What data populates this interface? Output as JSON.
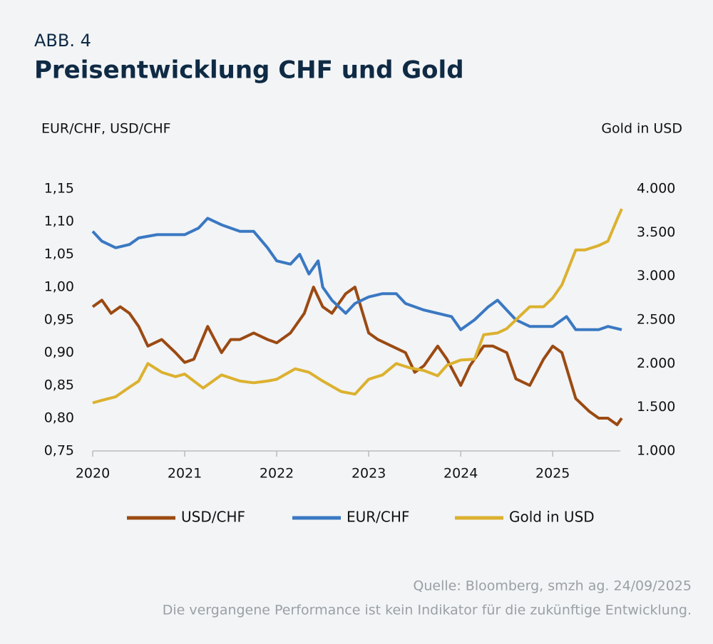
{
  "chart_data": {
    "type": "line",
    "figure_label": "ABB. 4",
    "title": "Preisentwicklung CHF und Gold",
    "y_label": "EUR/CHF, USD/CHF",
    "y2_label": "Gold in USD",
    "source": "Quelle: Bloomberg, smzh ag. 24/09/2025",
    "note": "Die vergangene Performance ist kein Indikator für die zukünftige Entwicklung.",
    "xlim": [
      2020,
      2025.75
    ],
    "xticks": [
      2020,
      2021,
      2022,
      2023,
      2024,
      2025
    ],
    "ylim": [
      0.75,
      1.15
    ],
    "yticks": [
      {
        "value": 0.75,
        "label": "0,75"
      },
      {
        "value": 0.8,
        "label": "0,80"
      },
      {
        "value": 0.85,
        "label": "0,85"
      },
      {
        "value": 0.9,
        "label": "0,90"
      },
      {
        "value": 0.95,
        "label": "0,95"
      },
      {
        "value": 1.0,
        "label": "1,00"
      },
      {
        "value": 1.05,
        "label": "1,05"
      },
      {
        "value": 1.1,
        "label": "1,10"
      },
      {
        "value": 1.15,
        "label": "1,15"
      }
    ],
    "y2lim": [
      1000,
      4000
    ],
    "y2ticks": [
      {
        "value": 1000,
        "label": "1.000"
      },
      {
        "value": 1500,
        "label": "1.500"
      },
      {
        "value": 2000,
        "label": "2.000"
      },
      {
        "value": 2500,
        "label": "2.500"
      },
      {
        "value": 3000,
        "label": "3.000"
      },
      {
        "value": 3500,
        "label": "3.500"
      },
      {
        "value": 4000,
        "label": "4.000"
      }
    ],
    "series": [
      {
        "name": "USD/CHF",
        "color": "#9b4a12",
        "x": [
          2020.0,
          2020.1,
          2020.2,
          2020.3,
          2020.4,
          2020.5,
          2020.6,
          2020.75,
          2020.9,
          2021.0,
          2021.1,
          2021.25,
          2021.4,
          2021.5,
          2021.6,
          2021.75,
          2021.9,
          2022.0,
          2022.15,
          2022.3,
          2022.4,
          2022.5,
          2022.6,
          2022.75,
          2022.85,
          2023.0,
          2023.1,
          2023.25,
          2023.4,
          2023.5,
          2023.6,
          2023.75,
          2023.85,
          2024.0,
          2024.1,
          2024.25,
          2024.35,
          2024.5,
          2024.6,
          2024.75,
          2024.9,
          2025.0,
          2025.1,
          2025.25,
          2025.4,
          2025.5,
          2025.6,
          2025.7,
          2025.75
        ],
        "values": [
          0.97,
          0.98,
          0.96,
          0.97,
          0.96,
          0.94,
          0.91,
          0.92,
          0.9,
          0.885,
          0.89,
          0.94,
          0.9,
          0.92,
          0.92,
          0.93,
          0.92,
          0.915,
          0.93,
          0.96,
          1.0,
          0.97,
          0.96,
          0.99,
          1.0,
          0.93,
          0.92,
          0.91,
          0.9,
          0.87,
          0.88,
          0.91,
          0.89,
          0.85,
          0.88,
          0.91,
          0.91,
          0.9,
          0.86,
          0.85,
          0.89,
          0.91,
          0.9,
          0.83,
          0.81,
          0.8,
          0.8,
          0.79,
          0.8
        ]
      },
      {
        "name": "EUR/CHF",
        "color": "#3a78c2",
        "x": [
          2020.0,
          2020.1,
          2020.25,
          2020.4,
          2020.5,
          2020.7,
          2020.9,
          2021.0,
          2021.15,
          2021.25,
          2021.4,
          2021.6,
          2021.75,
          2021.9,
          2022.0,
          2022.15,
          2022.25,
          2022.35,
          2022.45,
          2022.5,
          2022.6,
          2022.75,
          2022.85,
          2023.0,
          2023.15,
          2023.3,
          2023.4,
          2023.6,
          2023.75,
          2023.9,
          2024.0,
          2024.15,
          2024.3,
          2024.4,
          2024.5,
          2024.6,
          2024.75,
          2024.9,
          2025.0,
          2025.15,
          2025.25,
          2025.4,
          2025.5,
          2025.6,
          2025.75
        ],
        "values": [
          1.085,
          1.07,
          1.06,
          1.065,
          1.075,
          1.08,
          1.08,
          1.08,
          1.09,
          1.105,
          1.095,
          1.085,
          1.085,
          1.06,
          1.04,
          1.035,
          1.05,
          1.02,
          1.04,
          1.0,
          0.98,
          0.96,
          0.975,
          0.985,
          0.99,
          0.99,
          0.975,
          0.965,
          0.96,
          0.955,
          0.935,
          0.95,
          0.97,
          0.98,
          0.965,
          0.95,
          0.94,
          0.94,
          0.94,
          0.955,
          0.935,
          0.935,
          0.935,
          0.94,
          0.935
        ]
      },
      {
        "name": "Gold in USD",
        "color": "#dcb12f",
        "axis": "y2",
        "x": [
          2020.0,
          2020.1,
          2020.25,
          2020.4,
          2020.5,
          2020.6,
          2020.75,
          2020.9,
          2021.0,
          2021.2,
          2021.4,
          2021.6,
          2021.75,
          2021.9,
          2022.0,
          2022.2,
          2022.35,
          2022.5,
          2022.7,
          2022.85,
          2023.0,
          2023.15,
          2023.3,
          2023.45,
          2023.6,
          2023.75,
          2023.85,
          2024.0,
          2024.15,
          2024.25,
          2024.4,
          2024.5,
          2024.6,
          2024.75,
          2024.9,
          2025.0,
          2025.1,
          2025.25,
          2025.35,
          2025.5,
          2025.6,
          2025.7,
          2025.75
        ],
        "values": [
          1550,
          1580,
          1620,
          1730,
          1800,
          2000,
          1900,
          1850,
          1880,
          1720,
          1870,
          1800,
          1780,
          1800,
          1820,
          1940,
          1900,
          1800,
          1680,
          1650,
          1820,
          1870,
          2000,
          1950,
          1920,
          1860,
          1980,
          2040,
          2050,
          2330,
          2350,
          2400,
          2500,
          2650,
          2650,
          2750,
          2900,
          3300,
          3300,
          3350,
          3400,
          3650,
          3770
        ]
      }
    ]
  }
}
